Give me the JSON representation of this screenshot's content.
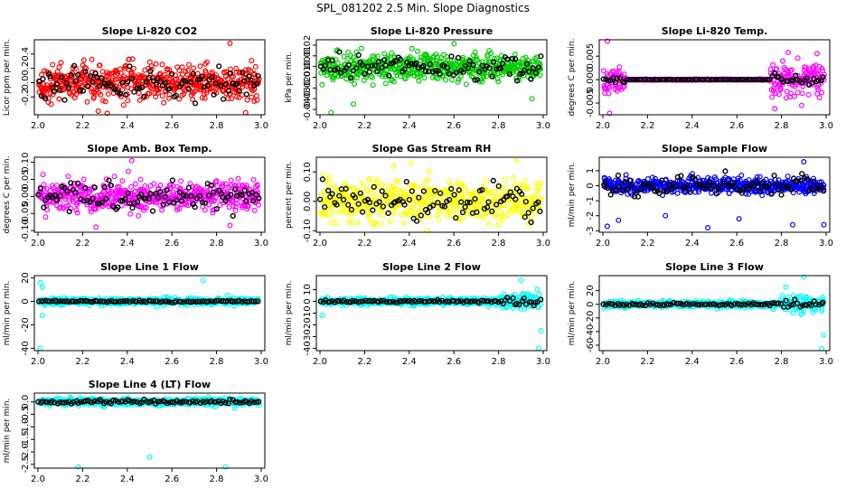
{
  "title": "SPL_081202  2.5 Min. Slope Diagnostics",
  "chart_data": [
    {
      "type": "scatter",
      "title": "Slope Li-820 CO2",
      "ylabel": "Licor ppm per min.",
      "xlim": [
        2.0,
        3.0
      ],
      "ylim": [
        -0.45,
        0.6
      ],
      "xticks": [
        "2.0",
        "2.2",
        "2.4",
        "2.6",
        "2.8",
        "3.0"
      ],
      "yticks": [
        {
          "v": -0.2,
          "label": "-0.2"
        },
        {
          "v": 0.0,
          "label": "0.0"
        },
        {
          "v": 0.2,
          "label": "0.2"
        },
        {
          "v": 0.4,
          "label": "0.4"
        }
      ],
      "color": "#ff0000",
      "pattern": "noisy",
      "center": 0.0,
      "spread": 0.22,
      "black_spread": 0.22,
      "outliers": [
        [
          2.27,
          -0.4
        ],
        [
          2.31,
          -0.43
        ],
        [
          2.86,
          0.55
        ],
        [
          2.93,
          -0.42
        ]
      ]
    },
    {
      "type": "scatter",
      "title": "Slope Li-820 Pressure",
      "ylabel": "kPa per min.",
      "xlim": [
        2.0,
        3.0
      ],
      "ylim": [
        -0.045,
        0.025
      ],
      "xticks": [
        "2.0",
        "2.2",
        "2.4",
        "2.6",
        "2.8",
        "3.0"
      ],
      "yticks": [
        {
          "v": -0.04,
          "label": "-0.04"
        },
        {
          "v": -0.03,
          "label": "-0.03"
        },
        {
          "v": -0.02,
          "label": "-0.02"
        },
        {
          "v": -0.01,
          "label": "-0.01"
        },
        {
          "v": 0.0,
          "label": "0.00"
        },
        {
          "v": 0.01,
          "label": "0.01"
        },
        {
          "v": 0.02,
          "label": "0.02"
        }
      ],
      "color": "#00cc00",
      "pattern": "noisy",
      "center": -0.001,
      "spread": 0.011,
      "black_spread": 0.011,
      "outliers": [
        [
          2.05,
          -0.043
        ],
        [
          2.15,
          -0.035
        ],
        [
          2.95,
          -0.03
        ]
      ]
    },
    {
      "type": "scatter",
      "title": "Slope Li-820 Temp.",
      "ylabel": "degrees C per min.",
      "xlim": [
        2.0,
        3.0
      ],
      "ylim": [
        -0.0075,
        0.0085
      ],
      "xticks": [
        "2.0",
        "2.2",
        "2.4",
        "2.6",
        "2.8",
        "3.0"
      ],
      "yticks": [
        {
          "v": -0.005,
          "label": "-0.005"
        },
        {
          "v": 0.0,
          "label": "0.000"
        },
        {
          "v": 0.005,
          "label": "0.005"
        }
      ],
      "color": "#ff00ff",
      "pattern": "temp",
      "center": 0.0,
      "spread": 0.0035,
      "black_spread": 0.0009,
      "outliers": [
        [
          2.02,
          0.0082
        ],
        [
          2.03,
          -0.0072
        ],
        [
          2.77,
          -0.0062
        ],
        [
          2.83,
          0.0058
        ]
      ]
    },
    {
      "type": "scatter",
      "title": "Slope Amb. Box Temp.",
      "ylabel": "degrees C per min.",
      "xlim": [
        2.0,
        3.0
      ],
      "ylim": [
        -0.105,
        0.115
      ],
      "xticks": [
        "2.0",
        "2.2",
        "2.4",
        "2.6",
        "2.8",
        "3.0"
      ],
      "yticks": [
        {
          "v": -0.1,
          "label": "-0.10"
        },
        {
          "v": -0.05,
          "label": "-0.05"
        },
        {
          "v": 0.0,
          "label": "0.00"
        },
        {
          "v": 0.05,
          "label": "0.05"
        },
        {
          "v": 0.1,
          "label": "0.10"
        }
      ],
      "color": "#ff00ff",
      "pattern": "noisy",
      "center": 0.0,
      "spread": 0.04,
      "black_spread": 0.04,
      "outliers": [
        [
          2.42,
          0.105
        ],
        [
          2.26,
          -0.09
        ],
        [
          2.86,
          -0.085
        ]
      ]
    },
    {
      "type": "scatter",
      "title": "Slope Gas Stream RH",
      "ylabel": "percent per min.",
      "xlim": [
        2.0,
        3.0
      ],
      "ylim": [
        -0.105,
        0.15
      ],
      "xticks": [
        "2.0",
        "2.2",
        "2.4",
        "2.6",
        "2.8",
        "3.0"
      ],
      "yticks": [
        {
          "v": -0.1,
          "label": "-0.10"
        },
        {
          "v": 0.0,
          "label": "0.00"
        },
        {
          "v": 0.1,
          "label": "0.10"
        }
      ],
      "color": "#ffff00",
      "pattern": "noisy",
      "center": 0.0,
      "spread": 0.06,
      "black_spread": 0.055,
      "outliers": [
        [
          2.48,
          -0.1
        ],
        [
          2.88,
          0.14
        ],
        [
          2.33,
          0.12
        ]
      ]
    },
    {
      "type": "scatter",
      "title": "Slope Sample Flow",
      "ylabel": "ml/min per min.",
      "xlim": [
        2.0,
        3.0
      ],
      "ylim": [
        -3.1,
        1.9
      ],
      "xticks": [
        "2.0",
        "2.2",
        "2.4",
        "2.6",
        "2.8",
        "3.0"
      ],
      "yticks": [
        {
          "v": -3,
          "label": "-3"
        },
        {
          "v": -2,
          "label": "-2"
        },
        {
          "v": -1,
          "label": "-1"
        },
        {
          "v": 0,
          "label": "0"
        },
        {
          "v": 1,
          "label": "1"
        }
      ],
      "color": "#0000ff",
      "pattern": "noisy",
      "center": 0.0,
      "spread": 0.45,
      "black_spread": 0.7,
      "outliers": [
        [
          2.02,
          -2.7
        ],
        [
          2.07,
          -2.3
        ],
        [
          2.28,
          -2.0
        ],
        [
          2.47,
          -2.8
        ],
        [
          2.61,
          -2.2
        ],
        [
          2.85,
          -2.6
        ],
        [
          2.99,
          -2.6
        ],
        [
          2.9,
          1.6
        ]
      ]
    },
    {
      "type": "scatter",
      "title": "Slope Line 1 Flow",
      "ylabel": "ml/min per min.",
      "xlim": [
        2.0,
        3.0
      ],
      "ylim": [
        -42,
        22
      ],
      "xticks": [
        "2.0",
        "2.2",
        "2.4",
        "2.6",
        "2.8",
        "3.0"
      ],
      "yticks": [
        {
          "v": -40,
          "label": "-40"
        },
        {
          "v": -20,
          "label": "-20"
        },
        {
          "v": 0,
          "label": "0"
        },
        {
          "v": 20,
          "label": "20"
        }
      ],
      "color": "#00ffff",
      "pattern": "flat",
      "center": 0.0,
      "spread": 2.5,
      "black_spread": 0.8,
      "outliers": [
        [
          2.01,
          -40
        ],
        [
          2.02,
          -12
        ],
        [
          2.01,
          16
        ],
        [
          2.74,
          18
        ],
        [
          2.02,
          12
        ]
      ]
    },
    {
      "type": "scatter",
      "title": "Slope Line 2 Flow",
      "ylabel": "ml/min per min.",
      "xlim": [
        2.0,
        3.0
      ],
      "ylim": [
        -42,
        22
      ],
      "xticks": [
        "2.0",
        "2.2",
        "2.4",
        "2.6",
        "2.8",
        "3.0"
      ],
      "yticks": [
        {
          "v": -40,
          "label": "-40"
        },
        {
          "v": -30,
          "label": "-30"
        },
        {
          "v": -20,
          "label": "-20"
        },
        {
          "v": -10,
          "label": "-10"
        },
        {
          "v": 0,
          "label": "0"
        },
        {
          "v": 10,
          "label": "10"
        }
      ],
      "color": "#00ffff",
      "pattern": "flat_tail",
      "center": 0.0,
      "spread": 2.5,
      "black_spread": 1.0,
      "outliers": [
        [
          2.98,
          -40
        ],
        [
          2.99,
          -25
        ],
        [
          2.9,
          18
        ],
        [
          2.01,
          -12
        ]
      ]
    },
    {
      "type": "scatter",
      "title": "Slope Line 3 Flow",
      "ylabel": "ml/min per min.",
      "xlim": [
        2.0,
        3.0
      ],
      "ylim": [
        -68,
        42
      ],
      "xticks": [
        "2.0",
        "2.2",
        "2.4",
        "2.6",
        "2.8",
        "3.0"
      ],
      "yticks": [
        {
          "v": -60,
          "label": "-60"
        },
        {
          "v": -40,
          "label": "-40"
        },
        {
          "v": -20,
          "label": "-20"
        },
        {
          "v": 0,
          "label": "0"
        },
        {
          "v": 20,
          "label": "20"
        }
      ],
      "color": "#00ffff",
      "pattern": "flat_tail",
      "center": 0.0,
      "spread": 4,
      "black_spread": 2,
      "outliers": [
        [
          2.98,
          -65
        ],
        [
          2.99,
          -45
        ],
        [
          2.9,
          40
        ],
        [
          2.82,
          25
        ]
      ]
    },
    {
      "type": "scatter",
      "title": "Slope Line 4 (LT) Flow",
      "ylabel": "ml/min per min.",
      "xlim": [
        2.0,
        3.0
      ],
      "ylim": [
        -2.65,
        0.35
      ],
      "xticks": [
        "2.0",
        "2.2",
        "2.4",
        "2.6",
        "2.8",
        "3.0"
      ],
      "yticks": [
        {
          "v": -2.5,
          "label": "-2.5"
        },
        {
          "v": -2.0,
          "label": "-2.0"
        },
        {
          "v": -1.5,
          "label": "-1.5"
        },
        {
          "v": -1.0,
          "label": "-1.0"
        },
        {
          "v": -0.5,
          "label": "-0.5"
        },
        {
          "v": 0.0,
          "label": "0.0"
        }
      ],
      "color": "#00ffff",
      "pattern": "flat",
      "center": 0.0,
      "spread": 0.12,
      "black_spread": 0.07,
      "outliers": [
        [
          2.18,
          -2.6
        ],
        [
          2.5,
          -2.2
        ],
        [
          2.84,
          -2.6
        ],
        [
          2.88,
          -0.25
        ]
      ]
    }
  ]
}
